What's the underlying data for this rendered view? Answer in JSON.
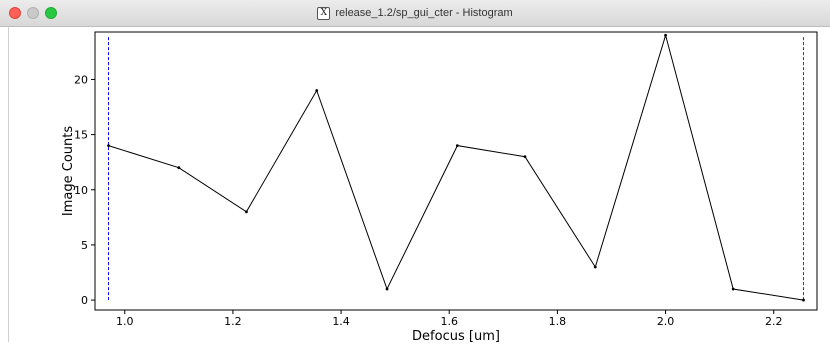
{
  "window": {
    "title": "release_1.2/sp_gui_cter - Histogram",
    "app_icon": "x11-icon",
    "app_icon_glyph": "X"
  },
  "colors": {
    "line": "#000000",
    "min_marker": "#0000ff",
    "max_marker": "#cc0000",
    "axis": "#000000"
  },
  "chart_data": {
    "type": "line",
    "title": "",
    "xlabel": "Defocus [um]",
    "ylabel": "Image Counts",
    "xlim": [
      0.945,
      2.28
    ],
    "ylim": [
      -0.9,
      24.3
    ],
    "x_ticks": [
      1.0,
      1.2,
      1.4,
      1.6,
      1.8,
      2.0,
      2.2
    ],
    "x_tick_labels": [
      "1.0",
      "1.2",
      "1.4",
      "1.6",
      "1.8",
      "2.0",
      "2.2"
    ],
    "y_ticks": [
      0,
      5,
      10,
      15,
      20
    ],
    "y_tick_labels": [
      "0",
      "5",
      "10",
      "15",
      "20"
    ],
    "grid": false,
    "series": [
      {
        "x": [
          0.97,
          1.1,
          1.225,
          1.355,
          1.485,
          1.615,
          1.74,
          1.87,
          2.0,
          2.125,
          2.255
        ],
        "values": [
          14,
          12,
          8,
          19,
          1,
          14,
          13,
          3,
          24,
          1,
          0
        ]
      }
    ],
    "markers": [
      {
        "x": 0.97,
        "y_range": [
          0,
          24
        ],
        "style": "dashed",
        "color": "#0000ff"
      },
      {
        "x": 2.255,
        "y_range": [
          0,
          24
        ],
        "style": "dashed",
        "color": "#cc0000"
      }
    ]
  }
}
